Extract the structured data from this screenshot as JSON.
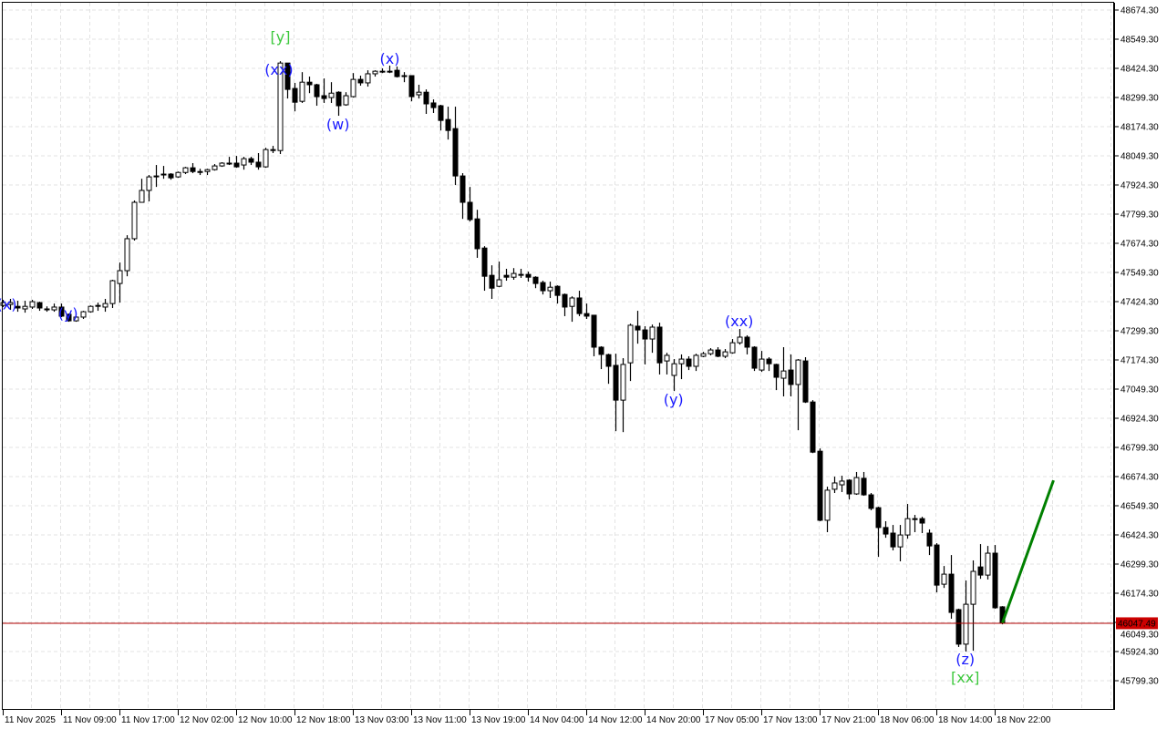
{
  "chart_data": {
    "type": "candlestick",
    "title": "",
    "xlabel": "",
    "ylabel": "",
    "grid": true,
    "ylim": [
      45749.3,
      48699.3
    ],
    "y_ticks": [
      "48674.30",
      "48549.30",
      "48424.30",
      "48299.30",
      "48174.30",
      "48049.30",
      "47924.30",
      "47799.30",
      "47674.30",
      "47549.30",
      "47424.30",
      "47299.30",
      "47174.30",
      "47049.30",
      "46924.30",
      "46799.30",
      "46674.30",
      "46549.30",
      "46424.30",
      "46299.30",
      "46174.30",
      "46049.30",
      "45924.30",
      "45799.30"
    ],
    "x_ticks": [
      "11 Nov 2025",
      "11 Nov 09:00",
      "11 Nov 17:00",
      "12 Nov 02:00",
      "12 Nov 10:00",
      "12 Nov 18:00",
      "13 Nov 03:00",
      "13 Nov 11:00",
      "13 Nov 19:00",
      "14 Nov 04:00",
      "14 Nov 12:00",
      "14 Nov 20:00",
      "17 Nov 05:00",
      "17 Nov 13:00",
      "17 Nov 21:00",
      "18 Nov 06:00",
      "18 Nov 14:00",
      "18 Nov 22:00"
    ],
    "x_tick_every_n_candles": 8,
    "ohlc_columns": [
      "open",
      "high",
      "low",
      "close"
    ],
    "ohlc": [
      [
        47408,
        47432,
        47401,
        47420
      ],
      [
        47412,
        47436,
        47389,
        47420
      ],
      [
        47404,
        47428,
        47381,
        47397
      ],
      [
        47393,
        47428,
        47377,
        47404
      ],
      [
        47401,
        47432,
        47393,
        47424
      ],
      [
        47420,
        47424,
        47385,
        47397
      ],
      [
        47393,
        47404,
        47381,
        47393
      ],
      [
        47389,
        47416,
        47381,
        47401
      ],
      [
        47401,
        47416,
        47358,
        47362
      ],
      [
        47370,
        47373,
        47338,
        47342
      ],
      [
        47342,
        47362,
        47338,
        47358
      ],
      [
        47358,
        47385,
        47350,
        47381
      ],
      [
        47381,
        47408,
        47377,
        47404
      ],
      [
        47408,
        47420,
        47385,
        47408
      ],
      [
        47401,
        47436,
        47381,
        47416
      ],
      [
        47416,
        47518,
        47397,
        47514
      ],
      [
        47502,
        47592,
        47420,
        47557
      ],
      [
        47557,
        47709,
        47533,
        47694
      ],
      [
        47694,
        47858,
        47686,
        47850
      ],
      [
        47850,
        47951,
        47850,
        47901
      ],
      [
        47901,
        47967,
        47854,
        47959
      ],
      [
        47963,
        48010,
        47916,
        47963
      ],
      [
        47971,
        48006,
        47951,
        47971
      ],
      [
        47971,
        47975,
        47947,
        47955
      ],
      [
        47959,
        47982,
        47955,
        47978
      ],
      [
        47978,
        48002,
        47971,
        47998
      ],
      [
        47998,
        48018,
        47975,
        47982
      ],
      [
        47982,
        47994,
        47967,
        47982
      ],
      [
        47982,
        47994,
        47967,
        47990
      ],
      [
        47990,
        48014,
        47986,
        48006
      ],
      [
        48006,
        48022,
        48002,
        48018
      ],
      [
        48018,
        48045,
        48010,
        48018
      ],
      [
        48018,
        48049,
        47998,
        48002
      ],
      [
        48010,
        48045,
        47990,
        48037
      ],
      [
        48037,
        48045,
        48010,
        48022
      ],
      [
        48022,
        48061,
        47990,
        48002
      ],
      [
        48002,
        48084,
        47998,
        48076
      ],
      [
        48072,
        48092,
        48061,
        48076
      ],
      [
        48072,
        48455,
        48057,
        48447
      ],
      [
        48447,
        48447,
        48295,
        48334
      ],
      [
        48338,
        48362,
        48240,
        48279
      ],
      [
        48283,
        48408,
        48276,
        48365
      ],
      [
        48365,
        48389,
        48318,
        48354
      ],
      [
        48354,
        48358,
        48264,
        48303
      ],
      [
        48307,
        48381,
        48276,
        48295
      ],
      [
        48299,
        48365,
        48276,
        48318
      ],
      [
        48322,
        48326,
        48221,
        48264
      ],
      [
        48268,
        48322,
        48264,
        48307
      ],
      [
        48303,
        48404,
        48299,
        48377
      ],
      [
        48377,
        48393,
        48350,
        48362
      ],
      [
        48362,
        48416,
        48346,
        48401
      ],
      [
        48401,
        48416,
        48389,
        48412
      ],
      [
        48412,
        48424,
        48404,
        48412
      ],
      [
        48412,
        48436,
        48404,
        48412
      ],
      [
        48416,
        48432,
        48385,
        48389
      ],
      [
        48393,
        48408,
        48365,
        48393
      ],
      [
        48393,
        48393,
        48283,
        48303
      ],
      [
        48311,
        48354,
        48295,
        48322
      ],
      [
        48322,
        48334,
        48229,
        48272
      ],
      [
        48276,
        48291,
        48233,
        48256
      ],
      [
        48264,
        48268,
        48158,
        48201
      ],
      [
        48205,
        48260,
        48119,
        48158
      ],
      [
        48166,
        48260,
        47924,
        47963
      ],
      [
        47963,
        47975,
        47779,
        47850
      ],
      [
        47850,
        47916,
        47768,
        47776
      ],
      [
        47779,
        47818,
        47612,
        47651
      ],
      [
        47654,
        47662,
        47471,
        47533
      ],
      [
        47537,
        47580,
        47436,
        47482
      ],
      [
        47490,
        47596,
        47486,
        47518
      ],
      [
        47537,
        47565,
        47514,
        47529
      ],
      [
        47529,
        47568,
        47518,
        47545
      ],
      [
        47541,
        47565,
        47526,
        47541
      ],
      [
        47541,
        47553,
        47510,
        47529
      ],
      [
        47529,
        47533,
        47482,
        47502
      ],
      [
        47506,
        47514,
        47455,
        47471
      ],
      [
        47471,
        47510,
        47440,
        47486
      ],
      [
        47490,
        47494,
        47416,
        47451
      ],
      [
        47455,
        47459,
        47362,
        47401
      ],
      [
        47404,
        47447,
        47338,
        47440
      ],
      [
        47440,
        47471,
        47362,
        47373
      ],
      [
        47373,
        47416,
        47350,
        47362
      ],
      [
        47366,
        47366,
        47190,
        47229
      ],
      [
        47229,
        47233,
        47135,
        47198
      ],
      [
        47197,
        47201,
        47072,
        47147
      ],
      [
        47151,
        47201,
        46869,
        47002
      ],
      [
        47002,
        47182,
        46865,
        47155
      ],
      [
        47162,
        47330,
        47084,
        47323
      ],
      [
        47319,
        47385,
        47244,
        47303
      ],
      [
        47303,
        47319,
        47155,
        47264
      ],
      [
        47264,
        47326,
        47205,
        47315
      ],
      [
        47315,
        47334,
        47112,
        47162
      ],
      [
        47170,
        47205,
        47112,
        47194
      ],
      [
        47108,
        47178,
        47041,
        47158
      ],
      [
        47158,
        47198,
        47092,
        47178
      ],
      [
        47178,
        47190,
        47131,
        47147
      ],
      [
        47147,
        47201,
        47127,
        47194
      ],
      [
        47190,
        47209,
        47186,
        47201
      ],
      [
        47201,
        47225,
        47194,
        47217
      ],
      [
        47217,
        47229,
        47186,
        47190
      ],
      [
        47190,
        47221,
        47182,
        47209
      ],
      [
        47205,
        47264,
        47201,
        47248
      ],
      [
        47248,
        47307,
        47240,
        47272
      ],
      [
        47272,
        47280,
        47198,
        47229
      ],
      [
        47229,
        47233,
        47127,
        47139
      ],
      [
        47131,
        47213,
        47123,
        47178
      ],
      [
        47178,
        47186,
        47127,
        47158
      ],
      [
        47155,
        47158,
        47045,
        47100
      ],
      [
        47096,
        47229,
        47018,
        47127
      ],
      [
        47131,
        47198,
        47018,
        47069
      ],
      [
        47069,
        47178,
        46873,
        47174
      ],
      [
        47170,
        47186,
        46990,
        46994
      ],
      [
        46994,
        47002,
        46775,
        46779
      ],
      [
        46783,
        46795,
        46483,
        46487
      ],
      [
        46487,
        46631,
        46436,
        46616
      ],
      [
        46620,
        46674,
        46604,
        46647
      ],
      [
        46639,
        46678,
        46608,
        46655
      ],
      [
        46659,
        46663,
        46576,
        46600
      ],
      [
        46600,
        46694,
        46596,
        46670
      ],
      [
        46667,
        46694,
        46592,
        46596
      ],
      [
        46596,
        46604,
        46530,
        46538
      ],
      [
        46541,
        46545,
        46330,
        46456
      ],
      [
        46456,
        46483,
        46412,
        46428
      ],
      [
        46432,
        46467,
        46358,
        46373
      ],
      [
        46373,
        46467,
        46311,
        46424
      ],
      [
        46424,
        46557,
        46408,
        46494
      ],
      [
        46494,
        46510,
        46436,
        46494
      ],
      [
        46494,
        46502,
        46432,
        46475
      ],
      [
        46432,
        46448,
        46338,
        46377
      ],
      [
        46381,
        46389,
        46178,
        46209
      ],
      [
        46213,
        46291,
        46197,
        46256
      ],
      [
        46256,
        46338,
        46065,
        46092
      ],
      [
        46104,
        46108,
        45944,
        45956
      ],
      [
        45956,
        46229,
        45924,
        46127
      ],
      [
        46127,
        46315,
        45928,
        46268
      ],
      [
        46287,
        46385,
        46236,
        46252
      ],
      [
        46252,
        46377,
        46233,
        46346
      ],
      [
        46346,
        46381,
        46108,
        46112
      ],
      [
        46116,
        46119,
        46041,
        46047.49
      ]
    ],
    "current_price": "46047.49",
    "projection_line": {
      "from": {
        "candle": 137,
        "price": 46047.49
      },
      "to": {
        "candle": 144,
        "price": 46658
      },
      "color": "#008000"
    },
    "wave_labels": [
      {
        "text": "(x)",
        "candle": 0.5,
        "price": 47415,
        "color": "#1a1aff"
      },
      {
        "text": "(y)",
        "candle": 8.9,
        "price": 47375,
        "color": "#1a1aff"
      },
      {
        "text": "[y]",
        "candle": 38,
        "price": 48561,
        "color": "#3cc83c"
      },
      {
        "text": "(xx)",
        "candle": 37.8,
        "price": 48420,
        "color": "#1a1aff"
      },
      {
        "text": "(w)",
        "candle": 45.9,
        "price": 48186,
        "color": "#1a1aff"
      },
      {
        "text": "(x)",
        "candle": 53,
        "price": 48467,
        "color": "#1a1aff"
      },
      {
        "text": "(y)",
        "candle": 91.9,
        "price": 47006,
        "color": "#1a1aff"
      },
      {
        "text": "(xx)",
        "candle": 100.9,
        "price": 47342,
        "color": "#1a1aff"
      },
      {
        "text": "(z)",
        "candle": 131.9,
        "price": 45893,
        "color": "#1a1aff"
      },
      {
        "text": "[xx]",
        "candle": 131.9,
        "price": 45815,
        "color": "#3cc83c"
      }
    ],
    "colors": {
      "bull_body": "#ffffff",
      "bear_body": "#000000",
      "grid": "#e3e3e3",
      "price_line": "#b00000",
      "price_label_bg": "#cc0000"
    }
  }
}
